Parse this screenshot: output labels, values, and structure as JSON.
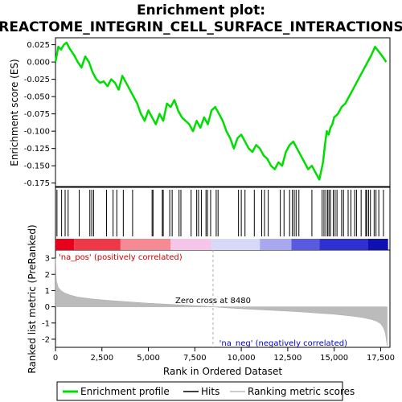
{
  "chart_data": {
    "type": "line",
    "title_line1": "Enrichment plot:",
    "title_line2": "REACTOME_INTEGRIN_CELL_SURFACE_INTERACTIONS",
    "xlabel": "Rank in Ordered Dataset",
    "ylabel_top": "Enrichment score (ES)",
    "ylabel_bottom": "Ranked list metric (PreRanked)",
    "xlim": [
      0,
      18000
    ],
    "x_ticks": [
      0,
      2500,
      5000,
      7500,
      10000,
      12500,
      15000,
      17500
    ],
    "x_tick_labels": [
      "0",
      "2,500",
      "5,000",
      "7,500",
      "10,000",
      "12,500",
      "15,000",
      "17,500"
    ],
    "es_ylim": [
      -0.18,
      0.035
    ],
    "es_ticks": [
      0.025,
      0.0,
      -0.025,
      -0.05,
      -0.075,
      -0.1,
      -0.125,
      -0.15,
      -0.175
    ],
    "es_tick_labels": [
      "0.025",
      "0.000",
      "-0.025",
      "-0.050",
      "-0.075",
      "-0.100",
      "-0.125",
      "-0.150",
      "-0.175"
    ],
    "metric_ylim": [
      -2.5,
      3.5
    ],
    "metric_ticks": [
      3,
      2,
      1,
      0,
      -1,
      -2
    ],
    "metric_tick_labels": [
      "3",
      "2",
      "1",
      "0",
      "-1",
      "-2"
    ],
    "series": [
      {
        "name": "Enrichment profile",
        "color": "#00dd00",
        "x": [
          0,
          150,
          300,
          450,
          600,
          750,
          1000,
          1200,
          1400,
          1600,
          1800,
          2000,
          2200,
          2400,
          2600,
          2800,
          3000,
          3200,
          3400,
          3600,
          3800,
          4000,
          4200,
          4400,
          4600,
          4800,
          5000,
          5200,
          5400,
          5600,
          5800,
          6000,
          6200,
          6400,
          6600,
          6800,
          7000,
          7200,
          7400,
          7600,
          7800,
          8000,
          8200,
          8400,
          8600,
          8800,
          9000,
          9200,
          9400,
          9600,
          9800,
          10000,
          10200,
          10400,
          10600,
          10800,
          11000,
          11200,
          11400,
          11600,
          11800,
          12000,
          12200,
          12400,
          12600,
          12800,
          13000,
          13200,
          13400,
          13600,
          13800,
          14000,
          14200,
          14400,
          14500,
          14600,
          14700,
          14800,
          14900,
          15000,
          15200,
          15400,
          15600,
          15800,
          16000,
          16200,
          16400,
          16600,
          16800,
          17000,
          17200,
          17400,
          17600,
          17800
        ],
        "y": [
          0.0,
          0.022,
          0.018,
          0.025,
          0.028,
          0.02,
          0.01,
          0.0,
          -0.008,
          0.008,
          0.0,
          -0.015,
          -0.025,
          -0.03,
          -0.028,
          -0.035,
          -0.025,
          -0.03,
          -0.04,
          -0.02,
          -0.03,
          -0.04,
          -0.05,
          -0.06,
          -0.075,
          -0.085,
          -0.07,
          -0.08,
          -0.09,
          -0.075,
          -0.085,
          -0.06,
          -0.065,
          -0.055,
          -0.07,
          -0.08,
          -0.085,
          -0.09,
          -0.1,
          -0.085,
          -0.095,
          -0.08,
          -0.09,
          -0.07,
          -0.065,
          -0.075,
          -0.085,
          -0.1,
          -0.11,
          -0.125,
          -0.11,
          -0.105,
          -0.115,
          -0.125,
          -0.13,
          -0.12,
          -0.125,
          -0.135,
          -0.14,
          -0.15,
          -0.155,
          -0.145,
          -0.15,
          -0.13,
          -0.12,
          -0.115,
          -0.125,
          -0.135,
          -0.145,
          -0.155,
          -0.15,
          -0.16,
          -0.17,
          -0.145,
          -0.12,
          -0.1,
          -0.105,
          -0.095,
          -0.09,
          -0.08,
          -0.075,
          -0.065,
          -0.06,
          -0.05,
          -0.04,
          -0.03,
          -0.02,
          -0.01,
          0.0,
          0.01,
          0.022,
          0.015,
          0.008,
          0.0
        ]
      }
    ],
    "hit_positions": [
      80,
      330,
      520,
      680,
      1280,
      1850,
      1950,
      2050,
      2750,
      3100,
      3300,
      3650,
      4150,
      5200,
      5250,
      5750,
      5800,
      6150,
      6280,
      6650,
      6750,
      7300,
      7600,
      7700,
      7850,
      8100,
      8180,
      8350,
      8650,
      8750,
      9850,
      10000,
      10200,
      10700,
      11100,
      11250,
      11450,
      12100,
      12300,
      12600,
      12750,
      12850,
      12950,
      13100,
      13800,
      14350,
      14450,
      14550,
      14650,
      14720,
      14800,
      14950,
      15050,
      15150,
      15400,
      15500,
      15750,
      15900,
      16100,
      16200,
      16450,
      16700,
      16750,
      16850,
      16950,
      17150,
      17250,
      17400,
      17650
    ],
    "metric_points": {
      "x": [
        0,
        50,
        150,
        300,
        500,
        800,
        1200,
        2000,
        3000,
        4000,
        5000,
        6000,
        7000,
        8000,
        8480,
        9000,
        10000,
        11000,
        12000,
        13000,
        14000,
        15000,
        15500,
        16000,
        16500,
        17000,
        17300,
        17500,
        17650,
        17750,
        17850
      ],
      "y": [
        3.0,
        1.6,
        1.2,
        1.0,
        0.85,
        0.72,
        0.6,
        0.48,
        0.38,
        0.3,
        0.22,
        0.16,
        0.1,
        0.04,
        0.0,
        -0.05,
        -0.12,
        -0.18,
        -0.24,
        -0.3,
        -0.38,
        -0.46,
        -0.52,
        -0.58,
        -0.66,
        -0.78,
        -0.9,
        -1.05,
        -1.3,
        -1.6,
        -2.4
      ]
    },
    "color_strip": [
      {
        "from": 0,
        "to": 1000,
        "color": "#e8001c"
      },
      {
        "from": 1000,
        "to": 3500,
        "color": "#ee3848"
      },
      {
        "from": 3500,
        "to": 6200,
        "color": "#f68a94"
      },
      {
        "from": 6200,
        "to": 8400,
        "color": "#f6c6e8"
      },
      {
        "from": 8400,
        "to": 11000,
        "color": "#d8d8f8"
      },
      {
        "from": 11000,
        "to": 12700,
        "color": "#a8a8f0"
      },
      {
        "from": 12700,
        "to": 14200,
        "color": "#5a5ae0"
      },
      {
        "from": 14200,
        "to": 16800,
        "color": "#3030d0"
      },
      {
        "from": 16800,
        "to": 17900,
        "color": "#1010b0"
      }
    ],
    "zero_cross_x": 8480,
    "zero_cross_label": "Zero cross at 8480",
    "na_pos_label": "'na_pos' (positively correlated)",
    "na_neg_label": "'na_neg' (negatively correlated)",
    "na_pos_color": "#cc0000",
    "na_neg_color": "#0000cc",
    "legend": [
      {
        "label": "Enrichment profile",
        "color": "#00dd00"
      },
      {
        "label": "Hits",
        "color": "#000000"
      },
      {
        "label": "Ranking metric scores",
        "color": "#bbbbbb"
      }
    ]
  }
}
